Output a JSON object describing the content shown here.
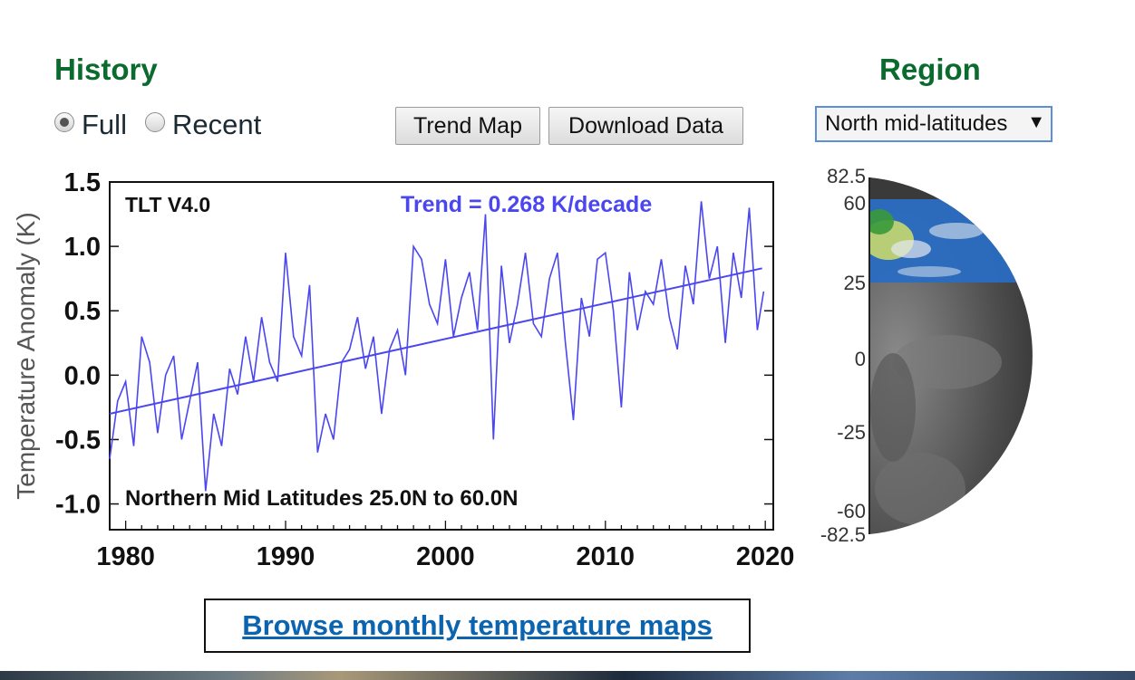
{
  "history": {
    "heading": "History",
    "options": [
      {
        "label": "Full",
        "checked": true
      },
      {
        "label": "Recent",
        "checked": false
      }
    ]
  },
  "buttons": {
    "trend_map": "Trend Map",
    "download_data": "Download Data"
  },
  "region": {
    "heading": "Region",
    "selected": "North mid-latitudes",
    "arrow": "▼"
  },
  "link": {
    "text": "Browse monthly temperature maps"
  },
  "chart_data": {
    "type": "line",
    "dataset_label": "TLT V4.0",
    "trend_label": "Trend =  0.268 K/decade",
    "region_label": "Northern Mid Latitudes  25.0N to  60.0N",
    "ylabel": "Temperature Anomaly (K)",
    "xlabel": "",
    "xlim": [
      1979,
      2020.5
    ],
    "ylim": [
      -1.2,
      1.5
    ],
    "x_ticks": [
      1980,
      1990,
      2000,
      2010,
      2020
    ],
    "y_ticks": [
      1.5,
      1.0,
      0.5,
      0.0,
      -0.5,
      -1.0
    ],
    "y_tick_labels": [
      "1.5",
      "1.0",
      "0.5",
      "0.0",
      "-0.5",
      "-1.0"
    ],
    "line_color": "#4a46f0",
    "trend": {
      "start": [
        1979,
        -0.3
      ],
      "end": [
        2019.8,
        0.83
      ]
    },
    "series": [
      {
        "name": "TLT V4.0",
        "x": [
          1979.0,
          1979.5,
          1980.0,
          1980.5,
          1981.0,
          1981.5,
          1982.0,
          1982.5,
          1983.0,
          1983.5,
          1984.0,
          1984.5,
          1985.0,
          1985.5,
          1986.0,
          1986.5,
          1987.0,
          1987.5,
          1988.0,
          1988.5,
          1989.0,
          1989.5,
          1990.0,
          1990.5,
          1991.0,
          1991.5,
          1992.0,
          1992.5,
          1993.0,
          1993.5,
          1994.0,
          1994.5,
          1995.0,
          1995.5,
          1996.0,
          1996.5,
          1997.0,
          1997.5,
          1998.0,
          1998.5,
          1999.0,
          1999.5,
          2000.0,
          2000.5,
          2001.0,
          2001.5,
          2002.0,
          2002.5,
          2003.0,
          2003.5,
          2004.0,
          2004.5,
          2005.0,
          2005.5,
          2006.0,
          2006.5,
          2007.0,
          2007.5,
          2008.0,
          2008.5,
          2009.0,
          2009.5,
          2010.0,
          2010.5,
          2011.0,
          2011.5,
          2012.0,
          2012.5,
          2013.0,
          2013.5,
          2014.0,
          2014.5,
          2015.0,
          2015.5,
          2016.0,
          2016.5,
          2017.0,
          2017.5,
          2018.0,
          2018.5,
          2019.0,
          2019.5,
          2019.9
        ],
        "y": [
          -0.65,
          -0.2,
          -0.05,
          -0.55,
          0.3,
          0.1,
          -0.45,
          0.0,
          0.15,
          -0.5,
          -0.2,
          0.1,
          -0.9,
          -0.3,
          -0.55,
          0.05,
          -0.15,
          0.3,
          -0.05,
          0.45,
          0.1,
          -0.05,
          0.95,
          0.3,
          0.15,
          0.7,
          -0.6,
          -0.3,
          -0.5,
          0.1,
          0.2,
          0.45,
          0.05,
          0.3,
          -0.3,
          0.2,
          0.35,
          0.0,
          1.0,
          0.9,
          0.55,
          0.4,
          0.9,
          0.3,
          0.6,
          0.8,
          0.35,
          1.25,
          -0.5,
          0.85,
          0.25,
          0.55,
          0.95,
          0.4,
          0.3,
          0.75,
          0.95,
          0.25,
          -0.35,
          0.6,
          0.3,
          0.9,
          0.95,
          0.5,
          -0.25,
          0.8,
          0.35,
          0.65,
          0.55,
          0.9,
          0.45,
          0.2,
          0.85,
          0.55,
          1.35,
          0.75,
          1.0,
          0.25,
          0.95,
          0.6,
          1.3,
          0.35,
          0.65
        ]
      }
    ]
  },
  "globe": {
    "lat_labels": [
      "82.5",
      "60",
      "25",
      "0",
      "-25",
      "-60",
      "-82.5"
    ],
    "highlight_color": "#2a6bc2"
  }
}
